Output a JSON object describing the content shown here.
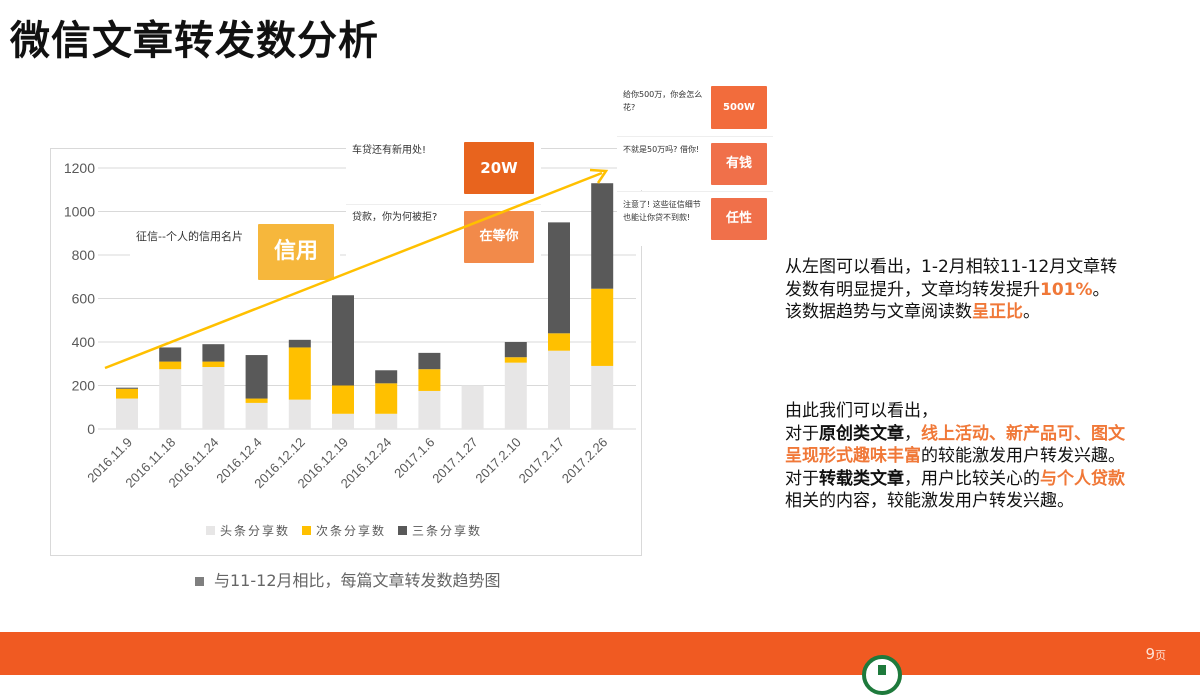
{
  "title": "微信文章转发数分析",
  "chart_data": {
    "type": "bar",
    "stacked": true,
    "categories": [
      "2016.11.9",
      "2016.11.18",
      "2016.11.24",
      "2016.12.4",
      "2016.12.12",
      "2016.12.19",
      "2016.12.24",
      "2017.1.6",
      "2017.1.27",
      "2017.2.10",
      "2017.2.17",
      "2017.2.26"
    ],
    "series": [
      {
        "name": "头条分享数",
        "color": "#e7e6e6",
        "values": [
          140,
          275,
          285,
          120,
          135,
          70,
          70,
          175,
          200,
          305,
          360,
          290
        ]
      },
      {
        "name": "次条分享数",
        "color": "#ffc000",
        "values": [
          45,
          35,
          25,
          20,
          240,
          130,
          140,
          100,
          0,
          25,
          80,
          355
        ]
      },
      {
        "name": "三条分享数",
        "color": "#595959",
        "values": [
          5,
          65,
          80,
          200,
          35,
          415,
          60,
          75,
          0,
          70,
          510,
          485
        ]
      }
    ],
    "ylim": [
      0,
      1200
    ],
    "yticks": [
      "0",
      "200",
      "400",
      "600",
      "800",
      "1000",
      "1200"
    ],
    "grid": true,
    "legend": "bottom",
    "trend_arrow_color": "#ffc000"
  },
  "cards": [
    {
      "text": "征信--个人的信用名片",
      "thumb": "信用"
    },
    {
      "text": "车贷还有新用处!",
      "thumb": "20W"
    },
    {
      "text": "贷款，你为何被拒?",
      "thumb": "在等你"
    },
    {
      "text": "给你500万，你会怎么花?",
      "thumb": "500W"
    },
    {
      "text": "不就是50万吗? 借你!",
      "thumb": "有钱"
    },
    {
      "text": "注意了! 这些征信细节也能让你贷不到款!",
      "thumb": "任性"
    }
  ],
  "caption": "与11-12月相比，每篇文章转发数趋势图",
  "para1": [
    "从左图可以看出，1-2月相较11-12月文章转发数有明显提升，文章均转发提升",
    "101%",
    "。该数据趋势与文章阅读数",
    "呈正比",
    "。"
  ],
  "para2": {
    "intro": "由此我们可以看出，",
    "p1": [
      "对于",
      "原创类文章",
      "，",
      "线上活动、新产品可、图文呈现形式趣味丰富",
      "的较能激发用户转发兴趣。"
    ],
    "p2": [
      "对于",
      "转载类文章",
      "，用户比较关心的",
      "与个人贷款",
      "相关的内容，较能激发用户转发兴趣。"
    ]
  },
  "page_number": "9",
  "page_suffix": "页"
}
